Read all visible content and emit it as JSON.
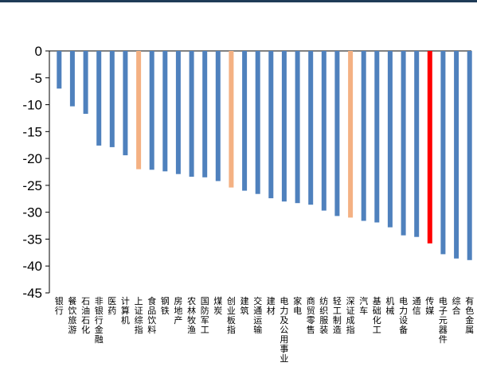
{
  "chart_data": {
    "type": "bar",
    "title": "",
    "xlabel": "",
    "ylabel": "",
    "ylim": [
      -45,
      0
    ],
    "yticks": [
      0,
      -5,
      -10,
      -15,
      -20,
      -25,
      -30,
      -35,
      -40,
      -45
    ],
    "grid": false,
    "legend": "none",
    "colors": {
      "default": "#4f81bd",
      "index": "#f4b183",
      "highlight": "#ff0000",
      "axis": "#000000",
      "top_rule": "#1f3b57"
    },
    "categories": [
      "银行",
      "餐饮旅游",
      "石油石化",
      "非银行金融",
      "医药",
      "计算机",
      "上证综指",
      "食品饮料",
      "钢铁",
      "房地产",
      "农林牧渔",
      "国防军工",
      "煤炭",
      "创业板指",
      "建筑",
      "交通运输",
      "建材",
      "电力及公用事业",
      "家电",
      "商贸零售",
      "纺织服装",
      "轻工制造",
      "深证成指",
      "汽车",
      "基础化工",
      "机械",
      "电力设备",
      "通信",
      "传媒",
      "电子元器件",
      "综合",
      "有色金属"
    ],
    "values": [
      -7.0,
      -10.3,
      -11.7,
      -17.6,
      -17.9,
      -19.4,
      -22.0,
      -22.1,
      -22.4,
      -22.9,
      -23.4,
      -23.5,
      -24.2,
      -25.4,
      -26.0,
      -26.6,
      -27.4,
      -28.0,
      -28.3,
      -28.6,
      -29.7,
      -30.7,
      -31.0,
      -31.6,
      -31.9,
      -32.8,
      -34.3,
      -34.6,
      -35.8,
      -37.8,
      -38.6,
      -38.9
    ],
    "bar_colors": [
      "default",
      "default",
      "default",
      "default",
      "default",
      "default",
      "index",
      "default",
      "default",
      "default",
      "default",
      "default",
      "default",
      "index",
      "default",
      "default",
      "default",
      "default",
      "default",
      "default",
      "default",
      "default",
      "index",
      "default",
      "default",
      "default",
      "default",
      "default",
      "highlight",
      "default",
      "default",
      "default"
    ]
  }
}
